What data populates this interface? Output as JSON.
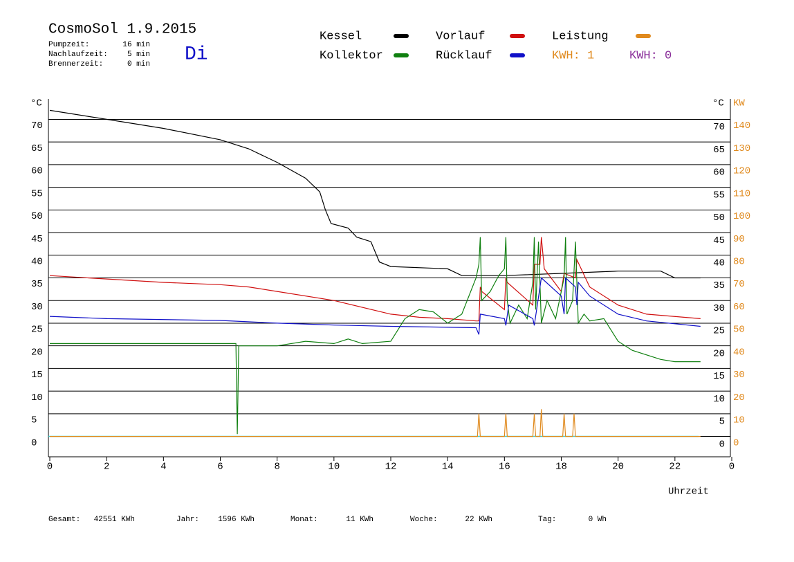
{
  "chart_data": {
    "type": "line",
    "title": "CosmoSol 1.9.2015",
    "day": "Di",
    "info": [
      {
        "label": "Pumpzeit:",
        "value": "16 min"
      },
      {
        "label": "Nachlaufzeit:",
        "value": "5 min"
      },
      {
        "label": "Brennerzeit:",
        "value": "0 min"
      }
    ],
    "kwh_labels": [
      {
        "text": "KWH: 1",
        "color": "#e08a1e"
      },
      {
        "text": "KWH: 0",
        "color": "#8a2f9a"
      }
    ],
    "y_unit": "°C",
    "y2_units": [
      "°C",
      "KW"
    ],
    "x_label": "Uhrzeit",
    "xlim": [
      0,
      24
    ],
    "xticks": [
      0,
      2,
      4,
      6,
      8,
      10,
      12,
      14,
      16,
      18,
      20,
      22,
      {
        "value": 24,
        "label": "0"
      }
    ],
    "ylim": [
      -4.5,
      74.5
    ],
    "yticks": [
      0,
      5,
      10,
      15,
      20,
      25,
      30,
      35,
      40,
      45,
      50,
      55,
      60,
      65,
      70
    ],
    "y2lim": [
      -9,
      149
    ],
    "y2ticks": [
      0,
      10,
      20,
      30,
      40,
      50,
      60,
      70,
      80,
      90,
      100,
      110,
      120,
      130,
      140
    ],
    "grid": true,
    "series": [
      {
        "name": "Kessel",
        "color": "#000000",
        "x": [
          0,
          2,
          4,
          6,
          7,
          7.5,
          8,
          9,
          9.5,
          9.7,
          9.9,
          10.5,
          10.8,
          11.3,
          11.6,
          12,
          14,
          14.5,
          16,
          18,
          20,
          21.5,
          22,
          22.9
        ],
        "values": [
          72,
          70,
          68,
          65.5,
          63.5,
          62,
          60.5,
          57,
          54,
          50,
          47,
          46,
          44,
          43,
          38.5,
          37.5,
          37,
          35.5,
          35.5,
          36,
          36.5,
          36.5,
          35,
          35
        ]
      },
      {
        "name": "Vorlauf",
        "color": "#d01010",
        "x": [
          0,
          4,
          6,
          7,
          8,
          10,
          12,
          13,
          14,
          15,
          15.1,
          15.15,
          15.2,
          16,
          16.05,
          16.1,
          17,
          17.05,
          17.25,
          17.3,
          17.4,
          18,
          18.1,
          18.5,
          18.55,
          19,
          20,
          21,
          22.9
        ],
        "values": [
          35.5,
          34,
          33.5,
          33,
          32,
          30,
          27,
          26.3,
          26,
          25.5,
          25.5,
          33,
          32,
          28,
          35,
          34,
          29,
          38,
          38,
          44,
          37,
          32,
          36,
          35,
          39,
          33,
          29,
          27,
          26
        ]
      },
      {
        "name": "Leistung",
        "color": "#e08a1e",
        "axis": "y2",
        "x": [
          0,
          15.05,
          15.1,
          15.15,
          16.0,
          16.05,
          16.1,
          17.0,
          17.05,
          17.1,
          17.25,
          17.3,
          17.35,
          18.05,
          18.1,
          18.15,
          18.4,
          18.45,
          18.5,
          22.9
        ],
        "values": [
          0,
          0,
          10,
          0,
          0,
          10,
          0,
          0,
          10,
          0,
          0,
          12,
          0,
          0,
          10,
          0,
          0,
          10,
          0,
          0
        ]
      },
      {
        "name": "Kollektor",
        "color": "#108010",
        "x": [
          0,
          6,
          6.55,
          6.6,
          6.65,
          8,
          9,
          10,
          10.5,
          11,
          12,
          12.5,
          13,
          13.5,
          14,
          14.5,
          15,
          15.1,
          15.15,
          15.2,
          15.5,
          15.8,
          16,
          16.05,
          16.1,
          16.2,
          16.5,
          16.8,
          17,
          17.05,
          17.1,
          17.2,
          17.3,
          17.5,
          17.8,
          18.1,
          18.15,
          18.2,
          18.4,
          18.5,
          18.6,
          18.8,
          19,
          19.5,
          20,
          20.5,
          21.5,
          22,
          22.9
        ],
        "values": [
          20.5,
          20.5,
          20.5,
          0.5,
          20,
          20,
          21,
          20.5,
          21.5,
          20.5,
          21,
          26,
          28,
          27.5,
          25,
          27,
          35,
          38,
          44,
          30,
          32,
          35.5,
          37,
          44,
          30,
          25,
          29,
          26,
          34,
          44,
          28,
          43,
          25,
          30,
          26,
          35,
          44,
          27,
          30,
          43,
          25,
          27,
          25.5,
          26,
          21,
          19,
          17,
          16.5,
          16.5
        ]
      },
      {
        "name": "Rücklauf",
        "color": "#1010c8",
        "x": [
          0,
          2,
          6,
          8,
          10,
          12,
          15,
          15.1,
          15.15,
          16,
          16.05,
          16.15,
          17,
          17.05,
          17.3,
          18,
          18.1,
          18.15,
          18.5,
          18.55,
          18.6,
          19,
          20,
          21,
          22.9
        ],
        "values": [
          26.5,
          26,
          25.6,
          25,
          24.6,
          24.3,
          24,
          22.5,
          27,
          26,
          24.5,
          29,
          26,
          24.5,
          35,
          31,
          27,
          35,
          33,
          29,
          34,
          31,
          27,
          25.5,
          24.3
        ]
      }
    ],
    "totals": [
      {
        "label": "Gesamt:",
        "value": "42551 KWh"
      },
      {
        "label": "Jahr:",
        "value": "1596 KWh"
      },
      {
        "label": "Monat:",
        "value": "11 KWh"
      },
      {
        "label": "Woche:",
        "value": "22 KWh"
      },
      {
        "label": "Tag:",
        "value": "0 Wh"
      }
    ]
  }
}
